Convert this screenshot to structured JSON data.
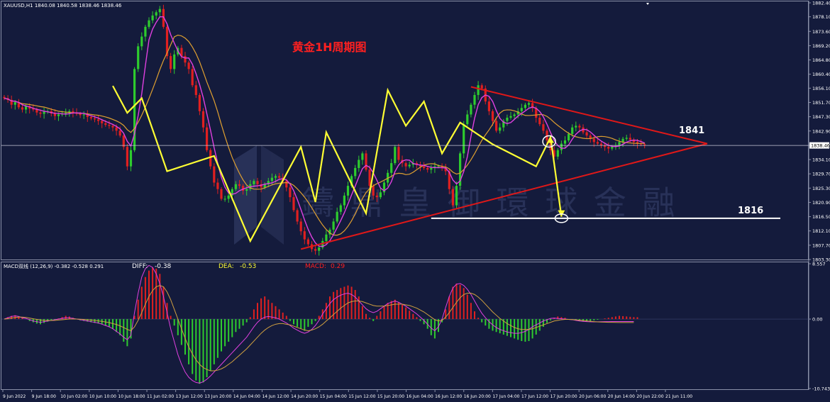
{
  "window": {
    "header": "XAUUSD,H1  1840.08 1840.58 1838.46 1838.46",
    "current_price_label": "1838.46"
  },
  "colors": {
    "background": "#141b3c",
    "bull": "#2ecc2e",
    "bear": "#e02020",
    "trend": "#ffff33",
    "triangle": "#e01818",
    "ma_fast": "#e040e0",
    "ma_slow": "#e0a030",
    "support": "#ffffff",
    "watermark": "#3a4470"
  },
  "annotations": {
    "title": "黄金1H周期图",
    "resistance_label": "1841",
    "support_label": "1816",
    "watermark": "鑄 鼎 皇 御 環 球 金 融"
  },
  "macd_header": {
    "name": "MACD双线 (12,26,9) -0.382 -0.528 0.291",
    "diff_label": "DIFF:",
    "diff_value": "-0.38",
    "dea_label": "DEA:",
    "dea_value": "-0.53",
    "macd_label": "MACD:",
    "macd_value": "0.29"
  },
  "chart_data": [
    {
      "type": "line",
      "title": "XAUUSD,H1",
      "subtitle": "黄金1H周期图",
      "price_axis_ticks": [
        "1882.40",
        "1878.10",
        "1873.60",
        "1869.20",
        "1864.80",
        "1860.40",
        "1856.10",
        "1851.70",
        "1847.30",
        "1842.90",
        "1838.46",
        "1834.10",
        "1829.70",
        "1825.30",
        "1820.90",
        "1816.50",
        "1812.10",
        "1807.70",
        "1803.30"
      ],
      "ylim": [
        1803.3,
        1882.4
      ],
      "time_axis_labels": [
        "9 Jun 2022",
        "9 Jun 18:00",
        "10 Jun 02:00",
        "10 Jun 10:00",
        "10 Jun 18:00",
        "11 Jun 02:00",
        "13 Jun 12:00",
        "13 Jun 20:00",
        "14 Jun 04:00",
        "14 Jun 12:00",
        "14 Jun 20:00",
        "15 Jun 04:00",
        "15 Jun 12:00",
        "15 Jun 20:00",
        "16 Jun 04:00",
        "16 Jun 12:00",
        "16 Jun 20:00",
        "17 Jun 04:00",
        "17 Jun 12:00",
        "17 Jun 20:00",
        "20 Jun 06:00",
        "20 Jun 14:00",
        "20 Jun 22:00",
        "21 Jun 11:00"
      ],
      "close_series": [
        1853.0,
        1852.5,
        1851.0,
        1851.8,
        1850.2,
        1849.5,
        1850.5,
        1849.8,
        1849.5,
        1848.6,
        1848.2,
        1848.8,
        1849.0,
        1848.3,
        1847.5,
        1848.0,
        1848.2,
        1848.5,
        1849.0,
        1848.6,
        1848.2,
        1847.8,
        1848.0,
        1847.2,
        1846.8,
        1846.5,
        1846.0,
        1845.3,
        1844.8,
        1844.5,
        1844.0,
        1843.0,
        1841.5,
        1838.0,
        1832.0,
        1837.0,
        1862.0,
        1869.0,
        1872.0,
        1875.0,
        1877.0,
        1878.5,
        1879.5,
        1880.5,
        1875.0,
        1866.0,
        1862.0,
        1866.5,
        1868.5,
        1866.0,
        1864.0,
        1862.0,
        1857.0,
        1854.0,
        1849.0,
        1844.0,
        1837.0,
        1832.0,
        1827.0,
        1825.0,
        1822.0,
        1822.0,
        1823.0,
        1825.0,
        1826.5,
        1826.0,
        1824.5,
        1825.0,
        1826.5,
        1827.5,
        1826.5,
        1825.5,
        1826.5,
        1827.5,
        1828.5,
        1829.0,
        1828.5,
        1827.5,
        1825.5,
        1822.5,
        1818.5,
        1815.0,
        1812.0,
        1809.5,
        1808.0,
        1806.5,
        1806.0,
        1807.0,
        1809.0,
        1811.0,
        1812.5,
        1815.0,
        1818.0,
        1820.0,
        1823.0,
        1826.0,
        1829.0,
        1831.5,
        1834.0,
        1836.0,
        1831.0,
        1826.0,
        1823.0,
        1822.5,
        1824.0,
        1827.0,
        1830.0,
        1833.0,
        1838.0,
        1834.0,
        1833.0,
        1832.0,
        1832.5,
        1833.0,
        1832.5,
        1832.0,
        1831.5,
        1831.0,
        1831.5,
        1832.0,
        1832.0,
        1831.5,
        1830.5,
        1825.0,
        1820.0,
        1826.0,
        1836.0,
        1845.0,
        1848.0,
        1851.0,
        1854.0,
        1857.0,
        1856.0,
        1852.0,
        1849.0,
        1846.0,
        1843.0,
        1844.0,
        1846.0,
        1847.0,
        1847.5,
        1848.0,
        1849.0,
        1850.0,
        1851.0,
        1851.5,
        1850.0,
        1847.0,
        1845.0,
        1843.0,
        1840.0,
        1837.0,
        1835.0,
        1837.0,
        1839.0,
        1840.0,
        1842.0,
        1844.0,
        1844.5,
        1844.0,
        1842.5,
        1841.5,
        1840.5,
        1839.5,
        1839.0,
        1838.5,
        1838.0,
        1837.5,
        1838.0,
        1838.5,
        1839.5,
        1840.5,
        1840.8,
        1840.2,
        1839.5,
        1839.0,
        1838.8,
        1838.46
      ],
      "series": [
        {
          "name": "MA fast",
          "kind": "moving-average"
        },
        {
          "name": "MA slow",
          "kind": "moving-average"
        }
      ],
      "trend_zigzag": [
        [
          30,
          1856.8
        ],
        [
          34,
          1848.5
        ],
        [
          38,
          1853.0
        ],
        [
          45,
          1830.5
        ],
        [
          58,
          1835.2
        ],
        [
          68,
          1809.0
        ],
        [
          82,
          1838.0
        ],
        [
          86,
          1821.0
        ],
        [
          89,
          1842.5
        ],
        [
          100,
          1817.5
        ],
        [
          106,
          1855.5
        ],
        [
          111,
          1844.5
        ],
        [
          116,
          1852.0
        ],
        [
          121,
          1836.0
        ],
        [
          126,
          1845.5
        ],
        [
          135,
          1838.8
        ],
        [
          147,
          1832.0
        ],
        [
          151,
          1841.0
        ],
        [
          154,
          1816.5
        ]
      ],
      "triangle": {
        "apex": [
          1839.0
        ],
        "upper_start": [
          1856.5
        ],
        "lower_start": [
          1806.5
        ]
      },
      "resistance_level": 1841,
      "support_level": 1816,
      "current_price": 1838.46,
      "grid": false
    },
    {
      "type": "bar",
      "title": "MACD双线 (12,26,9)",
      "ylim": [
        -10.743,
        8.557
      ],
      "axis_ticks": [
        "8.557",
        "0.00",
        "-10.743"
      ],
      "histogram": [
        0,
        0.3,
        0.5,
        0.6,
        0.4,
        0.2,
        0.0,
        -0.3,
        -0.5,
        -0.7,
        -0.8,
        -0.6,
        -0.4,
        -0.2,
        -0.1,
        0.1,
        0.3,
        0.5,
        0.4,
        0.2,
        0.0,
        -0.2,
        -0.3,
        -0.4,
        -0.5,
        -0.6,
        -0.7,
        -0.8,
        -1.0,
        -1.2,
        -1.5,
        -2.0,
        -2.5,
        -3.5,
        -4.2,
        -3.0,
        0.5,
        3.0,
        5.0,
        6.5,
        7.5,
        8.0,
        7.8,
        7.0,
        5.0,
        2.5,
        0.5,
        -1.0,
        -2.5,
        -4.0,
        -5.5,
        -7.0,
        -8.5,
        -9.5,
        -10.0,
        -9.8,
        -9.0,
        -8.0,
        -7.0,
        -6.0,
        -5.0,
        -4.2,
        -3.5,
        -2.8,
        -2.0,
        -1.5,
        -1.0,
        -0.5,
        0.3,
        1.5,
        2.5,
        3.2,
        3.5,
        3.0,
        2.5,
        2.0,
        1.5,
        1.0,
        0.5,
        -0.3,
        -0.8,
        -1.2,
        -1.5,
        -1.8,
        -1.2,
        -0.8,
        -0.3,
        0.5,
        1.5,
        2.5,
        3.5,
        4.2,
        4.5,
        4.8,
        5.0,
        5.2,
        5.0,
        4.5,
        3.5,
        2.0,
        0.8,
        0.2,
        -0.3,
        0.5,
        1.2,
        2.0,
        2.5,
        2.8,
        3.0,
        2.6,
        2.2,
        1.8,
        1.3,
        0.8,
        0.3,
        -0.3,
        -0.8,
        -1.5,
        -2.5,
        -3.0,
        -2.0,
        -0.5,
        1.5,
        3.5,
        5.0,
        5.5,
        5.3,
        4.8,
        3.8,
        2.5,
        1.2,
        0.2,
        -0.5,
        -1.0,
        -1.5,
        -1.8,
        -2.0,
        -2.2,
        -2.4,
        -2.6,
        -2.8,
        -3.0,
        -3.2,
        -3.4,
        -3.5,
        -3.4,
        -3.0,
        -2.4,
        -1.8,
        -1.2,
        -0.6,
        -0.2,
        0.2,
        0.4,
        0.3,
        0.2,
        0.0,
        -0.1,
        -0.2,
        -0.3,
        -0.4,
        -0.4,
        -0.3,
        -0.2,
        -0.1,
        0.0,
        0.1,
        0.2,
        0.3,
        0.4,
        0.5,
        0.45,
        0.4,
        0.35,
        0.3,
        0.29
      ],
      "diff_line": [
        0,
        0.2,
        0.4,
        0.5,
        0.4,
        0.2,
        0.1,
        -0.1,
        -0.3,
        -0.4,
        -0.5,
        -0.4,
        -0.3,
        -0.2,
        -0.1,
        0.0,
        0.1,
        0.2,
        0.2,
        0.1,
        0.0,
        -0.1,
        -0.2,
        -0.3,
        -0.4,
        -0.5,
        -0.6,
        -0.8,
        -1.0,
        -1.2,
        -1.5,
        -1.9,
        -2.3,
        -2.8,
        -3.2,
        -2.5,
        1.0,
        4.0,
        6.5,
        7.8,
        8.3,
        8.0,
        7.0,
        5.5,
        3.5,
        1.0,
        -1.5,
        -3.5,
        -5.5,
        -7.0,
        -8.2,
        -9.0,
        -9.5,
        -9.8,
        -9.9,
        -9.7,
        -9.3,
        -8.8,
        -8.2,
        -7.6,
        -7.0,
        -6.4,
        -5.8,
        -5.2,
        -4.6,
        -4.0,
        -3.4,
        -2.8,
        -2.0,
        -1.2,
        -0.5,
        0.0,
        0.3,
        0.4,
        0.3,
        0.2,
        0.0,
        -0.3,
        -0.6,
        -1.0,
        -1.4,
        -1.7,
        -2.0,
        -2.2,
        -2.0,
        -1.6,
        -1.0,
        -0.2,
        0.8,
        1.6,
        2.4,
        3.0,
        3.4,
        3.7,
        3.9,
        4.0,
        3.8,
        3.4,
        2.8,
        2.2,
        1.6,
        1.2,
        1.0,
        1.2,
        1.6,
        2.0,
        2.4,
        2.6,
        2.8,
        2.6,
        2.3,
        2.0,
        1.6,
        1.2,
        0.8,
        0.3,
        -0.2,
        -0.8,
        -1.4,
        -1.8,
        -1.2,
        0.0,
        1.8,
        3.5,
        4.8,
        5.4,
        5.5,
        5.2,
        4.6,
        3.8,
        2.8,
        1.8,
        0.9,
        0.2,
        -0.4,
        -0.9,
        -1.3,
        -1.6,
        -1.8,
        -2.0,
        -2.1,
        -2.2,
        -2.2,
        -2.1,
        -1.9,
        -1.6,
        -1.2,
        -0.9,
        -0.6,
        -0.3,
        -0.1,
        0.1,
        0.15,
        0.1,
        0.05,
        0.0,
        -0.05,
        -0.1,
        -0.2,
        -0.3,
        -0.35,
        -0.4,
        -0.42,
        -0.43,
        -0.42,
        -0.41,
        -0.4,
        -0.39,
        -0.385,
        -0.383,
        -0.382,
        -0.382,
        -0.382,
        -0.382,
        -0.382
      ],
      "dea_line": [
        0,
        0.05,
        0.15,
        0.25,
        0.3,
        0.3,
        0.25,
        0.15,
        0.05,
        -0.05,
        -0.15,
        -0.2,
        -0.22,
        -0.22,
        -0.2,
        -0.15,
        -0.1,
        -0.05,
        0.0,
        0.0,
        0.0,
        -0.02,
        -0.05,
        -0.1,
        -0.15,
        -0.2,
        -0.28,
        -0.35,
        -0.45,
        -0.55,
        -0.7,
        -0.85,
        -1.05,
        -1.3,
        -1.6,
        -1.8,
        -1.2,
        -0.2,
        1.0,
        2.3,
        3.5,
        4.4,
        5.0,
        5.2,
        5.0,
        4.2,
        3.0,
        1.5,
        0.0,
        -1.5,
        -3.0,
        -4.3,
        -5.4,
        -6.3,
        -7.0,
        -7.5,
        -7.8,
        -8.0,
        -8.0,
        -7.9,
        -7.7,
        -7.4,
        -7.0,
        -6.6,
        -6.1,
        -5.6,
        -5.1,
        -4.6,
        -4.0,
        -3.4,
        -2.8,
        -2.2,
        -1.7,
        -1.3,
        -1.0,
        -0.8,
        -0.7,
        -0.7,
        -0.8,
        -0.9,
        -1.1,
        -1.3,
        -1.5,
        -1.7,
        -1.8,
        -1.7,
        -1.5,
        -1.2,
        -0.8,
        -0.3,
        0.2,
        0.7,
        1.2,
        1.7,
        2.1,
        2.5,
        2.7,
        2.8,
        2.8,
        2.7,
        2.5,
        2.3,
        2.1,
        2.0,
        2.0,
        2.0,
        2.1,
        2.2,
        2.3,
        2.3,
        2.3,
        2.2,
        2.1,
        1.9,
        1.7,
        1.4,
        1.1,
        0.7,
        0.3,
        -0.1,
        -0.3,
        -0.2,
        0.3,
        1.0,
        1.8,
        2.6,
        3.3,
        3.8,
        4.0,
        4.0,
        3.8,
        3.4,
        2.9,
        2.3,
        1.7,
        1.1,
        0.6,
        0.1,
        -0.3,
        -0.7,
        -1.0,
        -1.3,
        -1.5,
        -1.6,
        -1.6,
        -1.6,
        -1.5,
        -1.3,
        -1.1,
        -0.9,
        -0.7,
        -0.5,
        -0.3,
        -0.2,
        -0.1,
        -0.05,
        -0.05,
        -0.08,
        -0.12,
        -0.17,
        -0.22,
        -0.28,
        -0.34,
        -0.39,
        -0.43,
        -0.46,
        -0.48,
        -0.5,
        -0.51,
        -0.52,
        -0.525,
        -0.528,
        -0.53,
        -0.53,
        -0.53
      ],
      "zero_line": true
    }
  ]
}
